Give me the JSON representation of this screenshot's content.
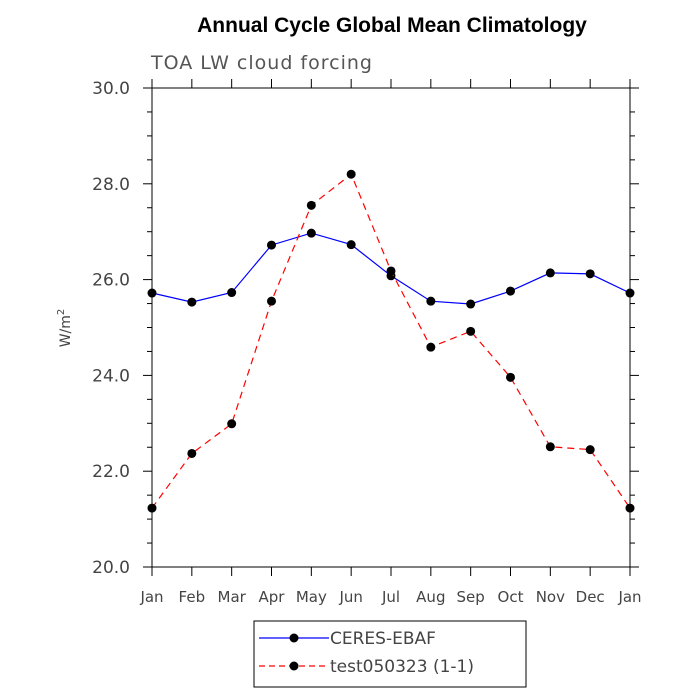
{
  "chart_data": {
    "type": "line",
    "title": "Annual Cycle Global Mean Climatology",
    "subtitle": "TOA LW cloud forcing",
    "ylabel": "W/m",
    "ylabel_sup": "2",
    "xlabel": "",
    "categories": [
      "Jan",
      "Feb",
      "Mar",
      "Apr",
      "May",
      "Jun",
      "Jul",
      "Aug",
      "Sep",
      "Oct",
      "Nov",
      "Dec",
      "Jan"
    ],
    "ylim": [
      20.0,
      30.0
    ],
    "yticks": [
      "20.0",
      "22.0",
      "24.0",
      "26.0",
      "28.0",
      "30.0"
    ],
    "series": [
      {
        "name": "CERES-EBAF",
        "color": "#0000ff",
        "dash": "solid",
        "values": [
          25.72,
          25.53,
          25.73,
          26.72,
          26.97,
          26.73,
          26.08,
          25.55,
          25.49,
          25.76,
          26.14,
          26.12,
          25.72
        ]
      },
      {
        "name": "test050323 (1-1)",
        "color": "#ff0000",
        "dash": "dashed",
        "values": [
          21.23,
          22.37,
          22.99,
          25.55,
          27.55,
          28.2,
          26.18,
          24.59,
          24.92,
          23.96,
          22.51,
          22.45,
          21.23
        ]
      }
    ],
    "legend_position": "bottom-center",
    "grid": false
  }
}
